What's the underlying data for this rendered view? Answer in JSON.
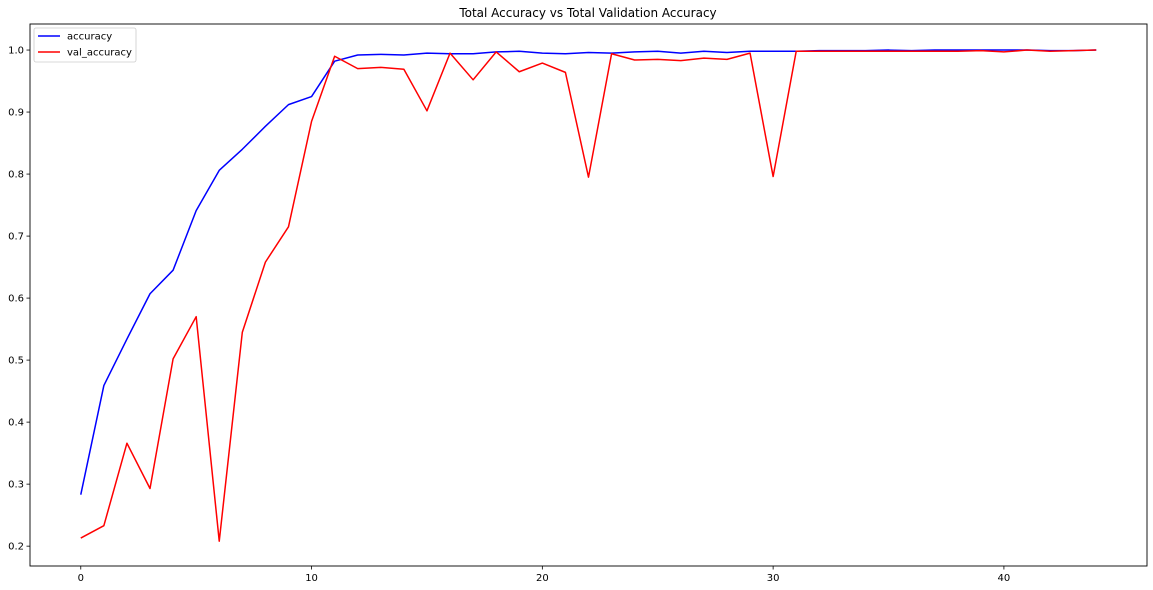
{
  "chart_data": {
    "type": "line",
    "title": "Total Accuracy vs Total Validation Accuracy",
    "xlabel": "",
    "ylabel": "",
    "xlim": [
      -2.2,
      46.2
    ],
    "ylim": [
      0.168,
      1.042
    ],
    "xticks": [
      0,
      10,
      20,
      30,
      40
    ],
    "yticks": [
      0.2,
      0.3,
      0.4,
      0.5,
      0.6,
      0.7,
      0.8,
      0.9,
      1.0
    ],
    "ytick_labels": [
      "0.2",
      "0.3",
      "0.4",
      "0.5",
      "0.6",
      "0.7",
      "0.8",
      "0.9",
      "1.0"
    ],
    "grid": false,
    "legend_position": "top-left",
    "x": [
      0,
      1,
      2,
      3,
      4,
      5,
      6,
      7,
      8,
      9,
      10,
      11,
      12,
      13,
      14,
      15,
      16,
      17,
      18,
      19,
      20,
      21,
      22,
      23,
      24,
      25,
      26,
      27,
      28,
      29,
      30,
      31,
      32,
      33,
      34,
      35,
      36,
      37,
      38,
      39,
      40,
      41,
      42,
      43,
      44
    ],
    "series": [
      {
        "name": "accuracy",
        "color": "#0000ff",
        "values": [
          0.283,
          0.459,
          0.534,
          0.607,
          0.645,
          0.741,
          0.806,
          0.84,
          0.877,
          0.912,
          0.925,
          0.982,
          0.992,
          0.993,
          0.992,
          0.995,
          0.994,
          0.994,
          0.997,
          0.998,
          0.995,
          0.994,
          0.996,
          0.995,
          0.997,
          0.998,
          0.995,
          0.998,
          0.996,
          0.998,
          0.998,
          0.998,
          0.999,
          0.999,
          0.999,
          1.0,
          0.999,
          1.0,
          1.0,
          1.0,
          1.0,
          1.0,
          0.999,
          0.999,
          1.0
        ]
      },
      {
        "name": "val_accuracy",
        "color": "#ff0000",
        "values": [
          0.213,
          0.233,
          0.366,
          0.293,
          0.502,
          0.57,
          0.208,
          0.545,
          0.658,
          0.715,
          0.885,
          0.99,
          0.97,
          0.972,
          0.969,
          0.902,
          0.995,
          0.952,
          0.997,
          0.965,
          0.979,
          0.964,
          0.795,
          0.994,
          0.984,
          0.985,
          0.983,
          0.987,
          0.985,
          0.995,
          0.796,
          0.998,
          0.998,
          0.998,
          0.998,
          0.998,
          0.998,
          0.998,
          0.998,
          0.999,
          0.997,
          1.0,
          0.998,
          0.999,
          1.0
        ]
      }
    ]
  }
}
